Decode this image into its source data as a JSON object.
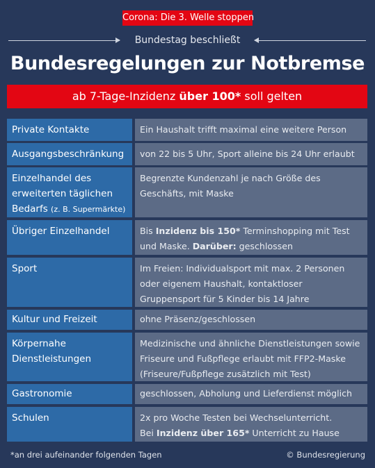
{
  "tag": "Corona: Die 3. Welle stoppen",
  "subheadline": "Bundestag beschließt",
  "title": "Bundesregelungen zur Notbremse",
  "banner": {
    "pre": "ab 7-Tage-Inzidenz ",
    "bold": "über 100*",
    "post": " soll gelten"
  },
  "rows": [
    {
      "label": "Private Kontakte",
      "value": "Ein Haushalt trifft maximal eine weitere Person"
    },
    {
      "label": "Ausgangsbeschränkung",
      "value": "von 22 bis 5 Uhr, Sport alleine bis 24 Uhr erlaubt"
    },
    {
      "label_line1": "Einzelhandel des",
      "label_line2": "erweiterten täglichen",
      "label_line3": "Bedarfs",
      "label_small": "(z. B. Supermärkte)",
      "value_line1": "Begrenzte Kundenzahl je nach Größe des",
      "value_line2": "Geschäfts, mit Maske"
    },
    {
      "label": "Übriger Einzelhandel",
      "v1_pre": "Bis ",
      "v1_bold": "Inzidenz bis 150*",
      "v1_post": " Terminshopping mit Test",
      "v2_pre": "und Maske. ",
      "v2_bold": "Darüber:",
      "v2_post": " geschlossen"
    },
    {
      "label": "Sport",
      "value_line1": "Im Freien: Individualsport mit max. 2 Personen",
      "value_line2": "oder eigenem Haushalt, kontaktloser",
      "value_line3": "Gruppensport für 5 Kinder bis 14 Jahre"
    },
    {
      "label": "Kultur und Freizeit",
      "value": "ohne Präsenz/geschlossen"
    },
    {
      "label_line1": "Körpernahe",
      "label_line2": "Dienstleistungen",
      "value_line1": "Medizinische und ähnliche Dienstleistungen sowie",
      "value_line2": "Friseure und Fußpflege erlaubt mit FFP2-Maske",
      "value_line3": "(Friseure/Fußpflege zusätzlich mit Test)"
    },
    {
      "label": "Gastronomie",
      "value": "geschlossen, Abholung und Lieferdienst möglich"
    },
    {
      "label": "Schulen",
      "value_line1": "2x pro Woche Testen bei Wechselunterricht.",
      "v2_pre": "Bei ",
      "v2_bold": "Inzidenz über 165*",
      "v2_post": " Unterricht zu Hause"
    }
  ],
  "footnote": "*an drei aufeinander folgenden Tagen",
  "credit": "© Bundesregierung"
}
